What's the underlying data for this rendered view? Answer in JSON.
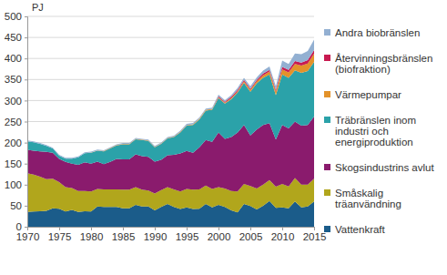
{
  "chart_data": {
    "type": "area",
    "stacked": true,
    "y_label": "PJ",
    "grid": true,
    "legend": "right",
    "x": [
      1970,
      1971,
      1972,
      1973,
      1974,
      1975,
      1976,
      1977,
      1978,
      1979,
      1980,
      1981,
      1982,
      1983,
      1984,
      1985,
      1986,
      1987,
      1988,
      1989,
      1990,
      1991,
      1992,
      1993,
      1994,
      1995,
      1996,
      1997,
      1998,
      1999,
      2000,
      2001,
      2002,
      2003,
      2004,
      2005,
      2006,
      2007,
      2008,
      2009,
      2010,
      2011,
      2012,
      2013,
      2014,
      2015
    ],
    "xlim": [
      1970,
      2015
    ],
    "xticks": [
      1970,
      1975,
      1980,
      1985,
      1990,
      1995,
      2000,
      2005,
      2010,
      2015
    ],
    "ylim": [
      0,
      500
    ],
    "yticks": [
      0,
      50,
      100,
      150,
      200,
      250,
      300,
      350,
      400,
      450,
      500
    ],
    "series": [
      {
        "name": "Vattenkraft",
        "color": "#1b5c8a",
        "values": [
          35,
          36,
          37,
          38,
          44,
          43,
          36,
          40,
          35,
          37,
          36,
          48,
          47,
          47,
          47,
          44,
          44,
          52,
          48,
          48,
          39,
          47,
          54,
          47,
          42,
          46,
          42,
          43,
          54,
          46,
          52,
          47,
          39,
          34,
          54,
          49,
          41,
          50,
          61,
          45,
          46,
          44,
          60,
          46,
          48,
          60
        ]
      },
      {
        "name": "Småskalig träanvändning",
        "color": "#b1a61c",
        "values": [
          92,
          88,
          82,
          75,
          70,
          63,
          58,
          52,
          50,
          48,
          48,
          42,
          42,
          42,
          42,
          44,
          44,
          42,
          40,
          38,
          40,
          40,
          40,
          42,
          42,
          44,
          46,
          46,
          44,
          44,
          42,
          44,
          46,
          50,
          48,
          48,
          50,
          50,
          50,
          50,
          56,
          52,
          56,
          54,
          52,
          54
        ]
      },
      {
        "name": "Skogsindustrins avlut",
        "color": "#8a1b6d",
        "values": [
          56,
          57,
          60,
          65,
          62,
          55,
          60,
          58,
          62,
          68,
          66,
          65,
          60,
          65,
          72,
          72,
          72,
          78,
          80,
          80,
          76,
          72,
          76,
          82,
          90,
          90,
          88,
          100,
          108,
          112,
          130,
          118,
          128,
          140,
          140,
          120,
          140,
          142,
          135,
          112,
          140,
          138,
          134,
          140,
          142,
          148
        ]
      },
      {
        "name": "Träbränslen inom industri och energiproduktion",
        "color": "#2ba2a9",
        "values": [
          20,
          20,
          18,
          14,
          10,
          8,
          8,
          12,
          18,
          22,
          26,
          26,
          30,
          32,
          32,
          36,
          36,
          36,
          38,
          38,
          34,
          38,
          40,
          42,
          50,
          60,
          66,
          66,
          70,
          76,
          82,
          84,
          90,
          95,
          100,
          104,
          110,
          112,
          116,
          106,
          120,
          120,
          122,
          126,
          128,
          130
        ]
      },
      {
        "name": "Värmepumpar",
        "color": "#e3922a",
        "values": [
          0,
          0,
          0,
          0,
          0,
          0,
          0,
          0,
          0,
          0,
          0.5,
          0.5,
          1,
          1,
          1,
          1,
          1,
          1,
          1,
          1,
          1,
          1,
          1,
          1.5,
          1.5,
          1.5,
          1.5,
          2,
          2,
          2,
          2,
          2,
          3,
          3,
          4,
          4,
          5,
          6,
          7,
          8,
          12,
          13,
          15,
          17,
          18,
          20
        ]
      },
      {
        "name": "Återvinningsbränslen (biofraktion)",
        "color": "#c81a50",
        "values": [
          0,
          0,
          0,
          0,
          0,
          0,
          0,
          0,
          0,
          0,
          0,
          0,
          0,
          0,
          0,
          0,
          0,
          0,
          0,
          0,
          0,
          0,
          0,
          0,
          0,
          0,
          0,
          0,
          0,
          0,
          2,
          2,
          3,
          3,
          3,
          3,
          3,
          4,
          4,
          4,
          6,
          6,
          7,
          7,
          8,
          8
        ]
      },
      {
        "name": "Andra biobränslen",
        "color": "#93b0d2",
        "values": [
          2,
          2,
          2,
          2,
          2,
          2,
          2,
          2,
          2,
          2,
          2,
          2,
          2,
          2,
          2,
          2,
          2,
          2,
          2,
          2,
          2,
          2,
          2,
          2,
          3,
          3,
          3,
          3,
          3,
          3,
          4,
          4,
          4,
          5,
          5,
          6,
          6,
          7,
          8,
          9,
          15,
          14,
          18,
          20,
          22,
          25
        ]
      }
    ]
  }
}
